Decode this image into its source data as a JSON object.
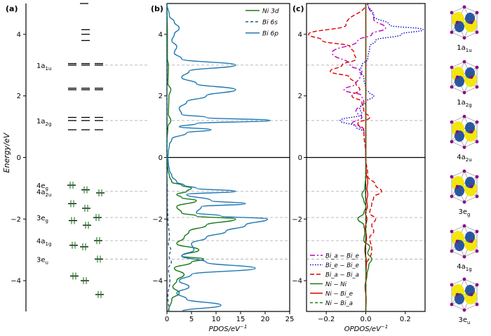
{
  "colors": {
    "ni3d": "#1a7a1a",
    "bi6s": "#1f5f8b",
    "bi6p": "#1f78b4",
    "ref_line": "#b0b0b0",
    "biabie": "#bb00bb",
    "biebie": "#0000cc",
    "biabia": "#dd0000",
    "nini": "#1a7a1a",
    "nibie": "#dd0000",
    "nibia": "#1a7a1a",
    "lobe_yellow": "#f2e600",
    "lobe_blue": "#1f4fa0",
    "atom": "#8a0a8a"
  },
  "chart_data": [
    {
      "panel": "(a)",
      "type": "scatter",
      "title": "(a)",
      "ylabel": "Energy/eV",
      "ylim": [
        -5,
        5
      ],
      "yticks": [
        -4,
        -2,
        0,
        2,
        4
      ],
      "occupied_levels": [
        -0.9,
        -1.05,
        -1.15,
        -1.5,
        -1.65,
        -1.95,
        -2.05,
        -2.2,
        -2.7,
        -2.85,
        -2.9,
        -3.3,
        -3.85,
        -4.0,
        -4.45
      ],
      "unoccupied_levels": [
        1.2,
        1.3,
        3.0,
        3.05,
        2.2,
        2.25,
        0.9,
        3.8,
        4.0,
        4.15,
        5.0
      ],
      "labels": [
        {
          "text": "1a",
          "sub": "1u",
          "energy": 3.0
        },
        {
          "text": "1a",
          "sub": "2g",
          "energy": 1.2
        },
        {
          "text": "4e",
          "sub": "g",
          "energy": -0.9
        },
        {
          "text": "4a",
          "sub": "2u",
          "energy": -1.1
        },
        {
          "text": "3e",
          "sub": "g",
          "energy": -1.95
        },
        {
          "text": "4a",
          "sub": "1g",
          "energy": -2.7
        },
        {
          "text": "3e",
          "sub": "u",
          "energy": -3.3
        }
      ]
    },
    {
      "panel": "(b)",
      "type": "line",
      "title": "(b)",
      "xlabel": "PDOS/eV",
      "xlabel_sup": "−1",
      "xlim": [
        0,
        25
      ],
      "xticks": [
        0,
        5,
        10,
        15,
        20,
        25
      ],
      "ylim": [
        -5,
        5
      ],
      "yticks": [
        -4,
        -2,
        0,
        2,
        4
      ],
      "legend": [
        "Ni 3d",
        "Bi 6s",
        "Bi 6p"
      ],
      "series": [
        {
          "name": "Ni 3d",
          "y": [
            -5.0,
            -4.6,
            -4.4,
            -4.2,
            -4.0,
            -3.8,
            -3.6,
            -3.4,
            -3.3,
            -3.2,
            -3.0,
            -2.8,
            -2.6,
            -2.4,
            -2.2,
            -2.0,
            -1.9,
            -1.8,
            -1.6,
            -1.4,
            -1.3,
            -1.2,
            -1.1,
            -1.0,
            -0.9,
            -0.8,
            -0.6,
            -0.4,
            -0.2,
            0.0,
            0.5,
            1.0,
            1.2,
            1.4,
            2.0,
            2.2,
            2.4,
            3.0,
            3.2,
            4.0,
            5.0
          ],
          "x": [
            0.3,
            1.0,
            2.5,
            1.2,
            2.0,
            3.5,
            1.5,
            5.0,
            7.5,
            3.0,
            6.5,
            2.0,
            3.5,
            4.5,
            8.0,
            14.0,
            6.0,
            3.0,
            2.0,
            6.0,
            3.0,
            2.0,
            4.0,
            5.0,
            3.0,
            1.0,
            0.5,
            0.2,
            0.1,
            0.0,
            0.0,
            0.2,
            0.8,
            0.3,
            0.4,
            0.8,
            0.2,
            0.3,
            0.1,
            0.1,
            0.0
          ]
        },
        {
          "name": "Bi 6s",
          "y": [
            -5.0,
            -4.5,
            -4.0,
            -3.6,
            -3.4,
            -3.2,
            -3.0,
            -2.8,
            -2.6,
            -2.0,
            -1.5,
            -1.0,
            -0.5,
            0.0,
            5.0
          ],
          "x": [
            0.4,
            0.2,
            0.6,
            0.3,
            0.9,
            0.4,
            0.8,
            0.3,
            0.5,
            0.2,
            0.1,
            0.1,
            0.0,
            0.0,
            0.0
          ]
        },
        {
          "name": "Bi 6p",
          "y": [
            -5.0,
            -4.8,
            -4.6,
            -4.4,
            -4.2,
            -4.0,
            -3.8,
            -3.6,
            -3.4,
            -3.2,
            -3.0,
            -2.8,
            -2.6,
            -2.4,
            -2.2,
            -2.0,
            -1.9,
            -1.8,
            -1.6,
            -1.5,
            -1.4,
            -1.2,
            -1.1,
            -1.0,
            -0.9,
            -0.8,
            -0.6,
            -0.4,
            -0.2,
            0.0,
            0.2,
            0.4,
            0.6,
            0.8,
            0.9,
            1.0,
            1.1,
            1.2,
            1.3,
            1.4,
            1.6,
            1.8,
            2.0,
            2.2,
            2.4,
            2.6,
            2.8,
            3.0,
            3.2,
            3.4,
            3.6,
            3.8,
            4.0,
            4.2,
            4.4,
            4.6,
            5.0
          ],
          "x": [
            3.0,
            11.0,
            4.0,
            2.0,
            4.5,
            2.5,
            5.0,
            18.0,
            8.0,
            3.0,
            5.5,
            5.0,
            8.0,
            12.0,
            16.0,
            20.5,
            11.0,
            6.0,
            7.0,
            16.0,
            9.0,
            4.0,
            14.0,
            6.0,
            3.5,
            2.0,
            1.0,
            0.5,
            0.3,
            0.2,
            0.3,
            0.5,
            1.0,
            4.0,
            9.0,
            2.5,
            6.0,
            21.0,
            8.0,
            3.0,
            2.5,
            4.0,
            8.0,
            14.0,
            6.0,
            3.0,
            4.5,
            14.0,
            3.0,
            1.5,
            2.0,
            1.0,
            1.5,
            2.5,
            1.5,
            0.5,
            0.0
          ]
        }
      ]
    },
    {
      "panel": "(c)",
      "type": "line",
      "title": "(c)",
      "xlabel": "OPDOS/eV",
      "xlabel_sup": "−1",
      "xlim": [
        -0.3,
        0.3
      ],
      "xticks": [
        -0.2,
        0.0,
        0.2
      ],
      "ylim": [
        -5,
        5
      ],
      "yticks": [
        -4,
        -2,
        0,
        2,
        4
      ],
      "legend": [
        "Bi_a − Bi_e",
        "Bi_e − Bi_e",
        "Bi_a − Bi_a",
        "Ni − Ni",
        "Ni − Bi_e",
        "Ni − Bi_a"
      ],
      "series": [
        {
          "name": "Bi_a − Bi_e",
          "y": [
            0.0,
            0.8,
            1.0,
            1.1,
            1.3,
            1.5,
            1.8,
            2.0,
            2.2,
            2.4,
            2.6,
            2.8,
            3.0,
            3.4,
            3.8,
            4.0,
            4.2,
            4.5,
            5.0
          ],
          "x": [
            0.0,
            0.0,
            -0.03,
            -0.07,
            -0.02,
            -0.05,
            -0.01,
            -0.02,
            -0.11,
            -0.05,
            -0.03,
            -0.02,
            -0.08,
            -0.17,
            -0.04,
            0.03,
            0.1,
            0.04,
            0.01
          ]
        },
        {
          "name": "Bi_e − Bi_e",
          "y": [
            0.0,
            0.8,
            1.0,
            1.2,
            1.4,
            1.6,
            1.8,
            2.0,
            2.1,
            2.2,
            2.6,
            2.8,
            3.0,
            3.2,
            3.6,
            3.8,
            4.0,
            4.15,
            4.3,
            4.6,
            5.0
          ],
          "x": [
            0.0,
            0.0,
            -0.05,
            -0.13,
            -0.02,
            -0.03,
            0.0,
            0.04,
            0.02,
            0.0,
            -0.01,
            -0.03,
            -0.02,
            0.01,
            0.02,
            0.05,
            0.18,
            0.29,
            0.12,
            0.04,
            0.01
          ]
        },
        {
          "name": "Bi_a − Bi_a",
          "y": [
            -3.6,
            -3.0,
            -2.6,
            -2.4,
            -2.2,
            -2.0,
            -1.8,
            -1.5,
            -1.3,
            -1.1,
            -0.9,
            -0.6,
            0.0,
            0.9,
            1.1,
            1.3,
            1.5,
            1.8,
            2.0,
            2.2,
            2.4,
            2.6,
            2.8,
            3.0,
            3.2,
            3.4,
            3.6,
            3.8,
            4.0,
            4.3,
            5.0
          ],
          "x": [
            0.0,
            0.03,
            0.02,
            0.04,
            0.03,
            0.05,
            0.02,
            0.03,
            0.04,
            0.08,
            0.05,
            0.01,
            0.0,
            -0.01,
            -0.04,
            0.02,
            -0.01,
            -0.02,
            -0.07,
            -0.03,
            -0.05,
            -0.08,
            -0.18,
            -0.12,
            -0.05,
            -0.06,
            -0.08,
            -0.22,
            -0.29,
            -0.1,
            0.0
          ]
        },
        {
          "name": "Ni − Ni",
          "y": [
            -5.0,
            -4.6,
            -4.2,
            -3.8,
            -3.5,
            -3.3,
            -3.1,
            -2.9,
            -2.7,
            -2.4,
            -2.2,
            -2.0,
            -1.8,
            -1.6,
            -1.4,
            -1.2,
            -1.0,
            -0.6,
            0.0,
            5.0
          ],
          "x": [
            0.0,
            0.002,
            -0.004,
            0.006,
            0.015,
            0.03,
            0.01,
            0.02,
            -0.01,
            -0.005,
            -0.01,
            -0.04,
            -0.01,
            0.0,
            -0.01,
            -0.02,
            -0.005,
            0.0,
            0.0,
            0.0
          ]
        },
        {
          "name": "Ni − Bi_e",
          "y": [
            -5.0,
            -4.0,
            -3.4,
            -3.0,
            -2.6,
            -2.3,
            -2.0,
            -1.8,
            -1.6,
            -1.4,
            -1.2,
            -1.0,
            -0.8,
            -0.5,
            0.0,
            5.0
          ],
          "x": [
            0.0,
            0.0,
            0.003,
            -0.005,
            0.004,
            -0.003,
            0.006,
            -0.002,
            0.008,
            0.005,
            0.01,
            0.006,
            0.01,
            0.002,
            0.0,
            0.0
          ]
        },
        {
          "name": "Ni − Bi_a",
          "y": [
            -5.0,
            -4.0,
            -3.0,
            -2.0,
            -1.0,
            0.0,
            5.0
          ],
          "x": [
            0.0,
            0.001,
            -0.002,
            0.002,
            -0.002,
            0.0,
            0.0
          ]
        }
      ]
    }
  ],
  "reference_energies": [
    3.0,
    1.2,
    -1.1,
    -1.95,
    -2.7,
    -3.3
  ],
  "orbital_pictures": [
    {
      "label": "1a",
      "sub": "1u"
    },
    {
      "label": "1a",
      "sub": "2g"
    },
    {
      "label": "4a",
      "sub": "2u"
    },
    {
      "label": "3e",
      "sub": "g"
    },
    {
      "label": "4a",
      "sub": "1g"
    },
    {
      "label": "3e",
      "sub": "u"
    }
  ]
}
